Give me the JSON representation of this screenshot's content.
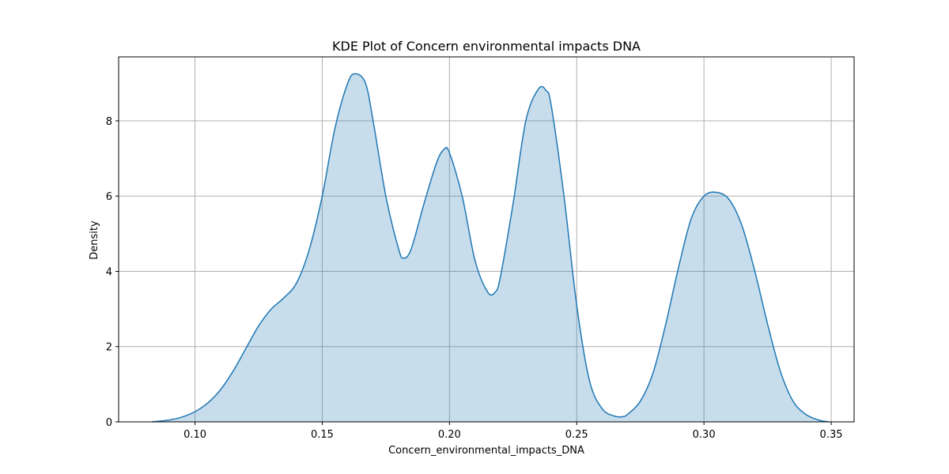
{
  "chart_data": {
    "type": "area",
    "title": "KDE Plot of Concern environmental impacts DNA",
    "xlabel": "Concern_environmental_impacts_DNA",
    "ylabel": "Density",
    "xlim": [
      0.07,
      0.359
    ],
    "ylim": [
      0,
      9.7
    ],
    "x_ticks": [
      0.1,
      0.15,
      0.2,
      0.25,
      0.3,
      0.35
    ],
    "x_tick_labels": [
      "0.10",
      "0.15",
      "0.20",
      "0.25",
      "0.30",
      "0.35"
    ],
    "y_ticks": [
      0,
      2,
      4,
      6,
      8
    ],
    "y_tick_labels": [
      "0",
      "2",
      "4",
      "6",
      "8"
    ],
    "grid": true,
    "series": [
      {
        "color": "#1f77b4",
        "fill_color": "#1f77b4",
        "fill_opacity": 0.25,
        "x": [
          0.083,
          0.09,
          0.095,
          0.1,
          0.105,
          0.11,
          0.115,
          0.12,
          0.125,
          0.13,
          0.135,
          0.14,
          0.145,
          0.15,
          0.155,
          0.16,
          0.163,
          0.167,
          0.17,
          0.175,
          0.18,
          0.182,
          0.185,
          0.19,
          0.195,
          0.198,
          0.2,
          0.205,
          0.21,
          0.215,
          0.218,
          0.22,
          0.225,
          0.23,
          0.235,
          0.238,
          0.24,
          0.245,
          0.25,
          0.255,
          0.26,
          0.265,
          0.268,
          0.27,
          0.275,
          0.28,
          0.285,
          0.29,
          0.295,
          0.3,
          0.305,
          0.31,
          0.315,
          0.32,
          0.325,
          0.33,
          0.335,
          0.34,
          0.345,
          0.349
        ],
        "y": [
          0.0,
          0.05,
          0.13,
          0.27,
          0.5,
          0.85,
          1.35,
          1.95,
          2.55,
          3.0,
          3.3,
          3.7,
          4.6,
          6.0,
          7.8,
          9.0,
          9.25,
          9.0,
          8.0,
          6.0,
          4.6,
          4.35,
          4.6,
          5.8,
          6.9,
          7.25,
          7.15,
          6.0,
          4.3,
          3.45,
          3.45,
          3.85,
          5.8,
          8.0,
          8.85,
          8.8,
          8.4,
          6.0,
          3.1,
          1.1,
          0.35,
          0.15,
          0.14,
          0.2,
          0.55,
          1.3,
          2.6,
          4.1,
          5.4,
          6.0,
          6.1,
          5.9,
          5.2,
          4.0,
          2.6,
          1.35,
          0.55,
          0.2,
          0.05,
          0.0
        ]
      }
    ]
  }
}
